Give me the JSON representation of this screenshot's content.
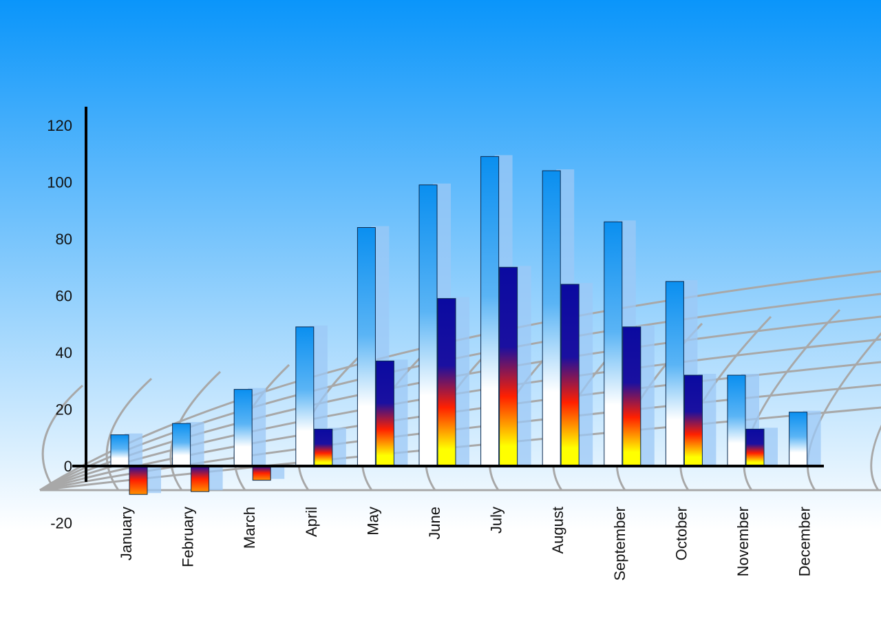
{
  "chart_data": {
    "type": "bar",
    "title": "",
    "xlabel": "",
    "ylabel": "",
    "ylim": [
      -20,
      120
    ],
    "yticks": [
      -20,
      0,
      20,
      40,
      60,
      80,
      100,
      120
    ],
    "categories": [
      "January",
      "February",
      "March",
      "April",
      "May",
      "June",
      "July",
      "August",
      "September",
      "October",
      "November",
      "December"
    ],
    "series": [
      {
        "values": [
          11,
          15,
          27,
          49,
          84,
          99,
          109,
          104,
          86,
          65,
          32,
          19
        ],
        "colors": [
          "#0a8ff0",
          "#ffffff"
        ]
      },
      {
        "values": [
          -10,
          -9,
          -5,
          13,
          37,
          59,
          70,
          64,
          49,
          32,
          13,
          null
        ],
        "colors": [
          "#1010a0",
          "#ff2000",
          "#ffff00"
        ]
      }
    ],
    "grid": false,
    "legend": "none",
    "background": [
      "#0a95fa",
      "#ffffff"
    ]
  }
}
